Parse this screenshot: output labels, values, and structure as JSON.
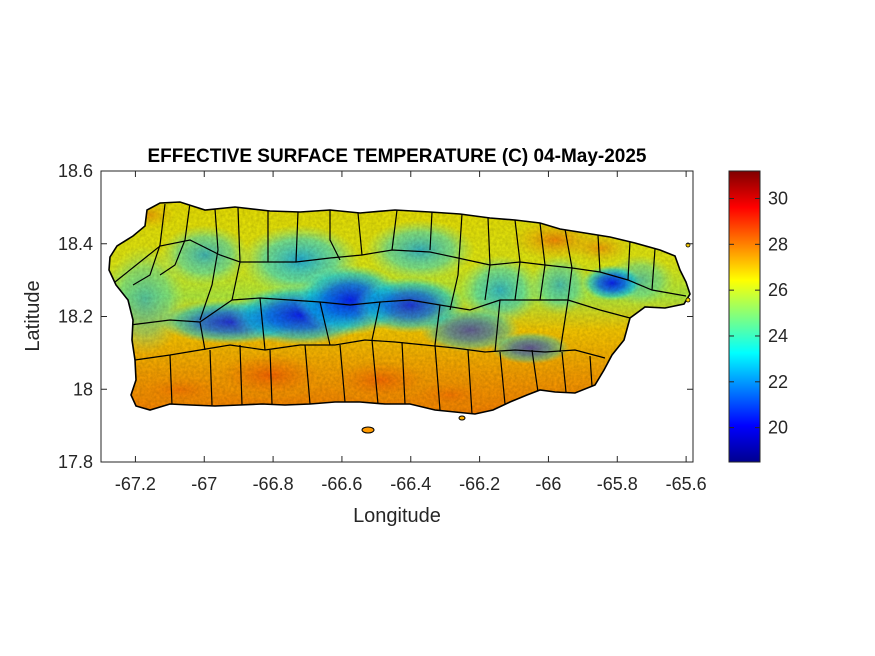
{
  "chart_data": {
    "type": "heatmap",
    "title": "EFFECTIVE SURFACE TEMPERATURE (C) 04-May-2025",
    "xlabel": "Longitude",
    "ylabel": "Latitude",
    "xlim": [
      -67.3,
      -65.58
    ],
    "ylim": [
      17.8,
      18.6
    ],
    "xticks": [
      -67.2,
      -67,
      -66.8,
      -66.6,
      -66.4,
      -66.2,
      -66,
      -65.8,
      -65.6
    ],
    "xtick_labels": [
      "-67.2",
      "-67",
      "-66.8",
      "-66.6",
      "-66.4",
      "-66.2",
      "-66",
      "-65.8",
      "-65.6"
    ],
    "yticks": [
      17.8,
      18,
      18.2,
      18.4,
      18.6
    ],
    "ytick_labels": [
      "17.8",
      "18",
      "18.2",
      "18.4",
      "18.6"
    ],
    "colorbar": {
      "colormap": "jet",
      "range": [
        18.5,
        31.2
      ],
      "ticks": [
        20,
        22,
        24,
        26,
        28,
        30
      ],
      "tick_labels": [
        "20",
        "22",
        "24",
        "26",
        "28",
        "30"
      ]
    },
    "region": "Puerto Rico",
    "borders": "municipality boundaries",
    "field_summary": {
      "cool_core": "central cordillera ~19-22 C, coldest near -66.8 to -66.5 lon, 18.15-18.25 lat",
      "east_cool_spot": "~20 C near -65.8 lon, 18.28 lat",
      "north_coast": "~25-28 C",
      "south_coast": "~27-30 C"
    }
  }
}
